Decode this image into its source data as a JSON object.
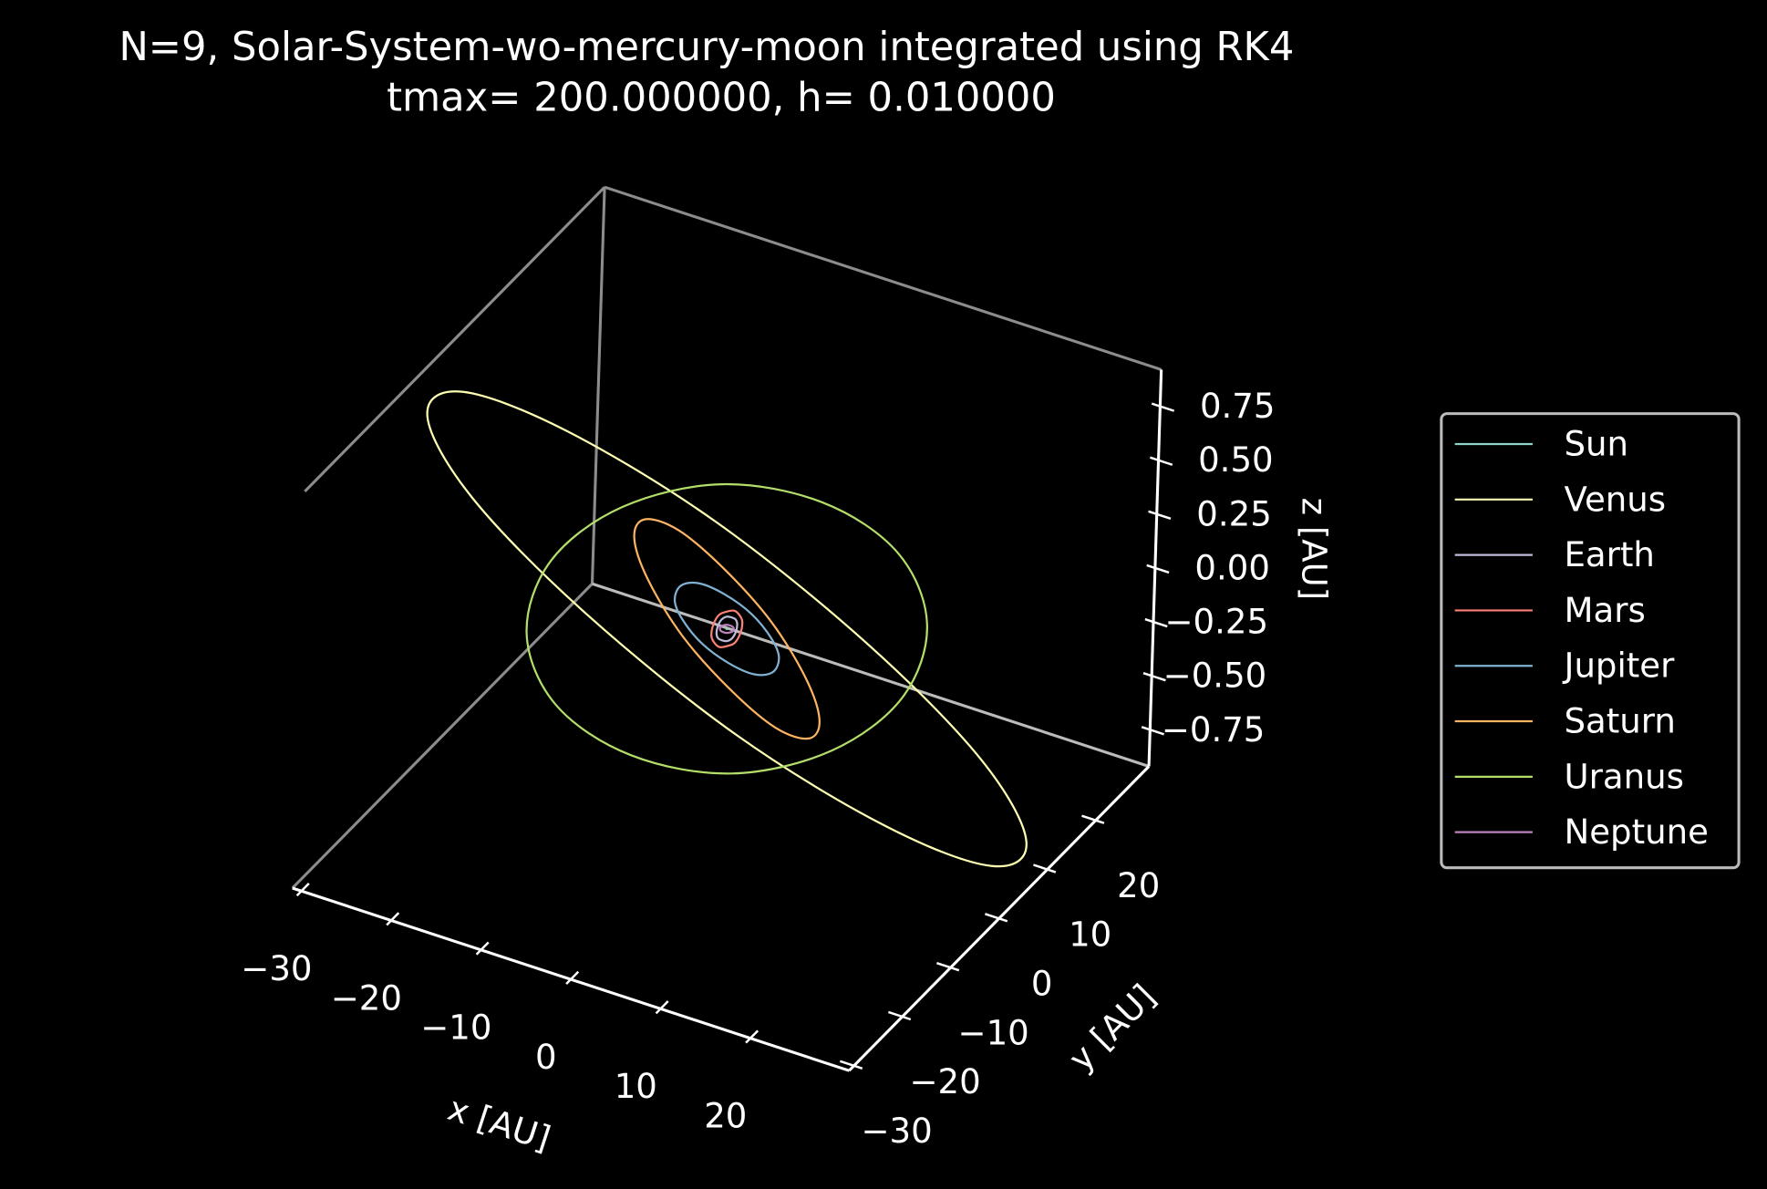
{
  "chart_data": {
    "type": "line3d",
    "title": "N=9, Solar-System-wo-mercury-moon integrated using RK4",
    "subtitle": "tmax= 200.000000, h= 0.010000",
    "x_label": "x [AU]",
    "y_label": "y [AU]",
    "z_label": "z [AU]",
    "xlim": [
      -31,
      31
    ],
    "ylim": [
      -31,
      31
    ],
    "zlim": [
      -0.92,
      0.92
    ],
    "xticks": [
      {
        "value": -30,
        "label": "−30"
      },
      {
        "value": -20,
        "label": "−20"
      },
      {
        "value": -10,
        "label": "−10"
      },
      0,
      10,
      20
    ],
    "yticks": [
      {
        "value": -30,
        "label": "−30"
      },
      {
        "value": -20,
        "label": "−20"
      },
      {
        "value": -10,
        "label": "−10"
      },
      0,
      10,
      20
    ],
    "zticks": [
      {
        "value": -0.75,
        "label": "−0.75"
      },
      {
        "value": -0.5,
        "label": "−0.50"
      },
      {
        "value": -0.25,
        "label": "−0.25"
      },
      {
        "value": 0,
        "label": "0.00"
      },
      0.25,
      {
        "value": 0.5,
        "label": "0.50"
      },
      0.75
    ],
    "grid": false,
    "legend": "center right",
    "series": [
      {
        "name": "Sun",
        "color": "#8dd3c7",
        "x": [
          0.05,
          0,
          -0.05,
          0
        ],
        "y": [
          0,
          0.05,
          0,
          -0.05
        ],
        "z": [
          0,
          0,
          0,
          0
        ]
      },
      {
        "name": "Venus",
        "color": "#feffb3",
        "x": [
          30,
          26,
          15,
          0,
          -15,
          -26,
          -30,
          -26,
          -15,
          0,
          15,
          26
        ],
        "y": [
          0,
          15,
          26,
          30,
          26,
          15,
          0,
          -15,
          -26,
          -30,
          -26,
          -15
        ],
        "z": [
          -0.69,
          -0.97,
          -0.99,
          -0.75,
          -0.3,
          0.22,
          0.69,
          0.97,
          0.99,
          0.75,
          0.3,
          -0.22
        ]
      },
      {
        "name": "Earth",
        "color": "#bfbbd9",
        "x": [
          1,
          0.87,
          0.5,
          0,
          -0.5,
          -0.87,
          -1,
          -0.87,
          -0.5,
          0,
          0.5,
          0.87
        ],
        "y": [
          0,
          0.5,
          0.87,
          1,
          0.87,
          0.5,
          0,
          -0.5,
          -0.87,
          -1,
          -0.87,
          -0.5
        ],
        "z": [
          0,
          0.02,
          0.03,
          0.03,
          0.03,
          0.02,
          0,
          -0.02,
          -0.03,
          -0.03,
          -0.03,
          -0.02
        ]
      },
      {
        "name": "Mars",
        "color": "#fa8174",
        "x": [
          1.5,
          1.3,
          0.75,
          0,
          -0.75,
          -1.3,
          -1.5,
          -1.3,
          -0.75,
          0,
          0.75,
          1.3
        ],
        "y": [
          0,
          0.75,
          1.3,
          1.5,
          1.3,
          0.75,
          0,
          -0.75,
          -1.3,
          -1.5,
          -1.3,
          -0.75
        ],
        "z": [
          0,
          0.03,
          0.04,
          0.05,
          0.04,
          0.03,
          0,
          -0.03,
          -0.04,
          -0.05,
          -0.04,
          -0.03
        ]
      },
      {
        "name": "Jupiter",
        "color": "#81b1d2",
        "x": [
          5.2,
          4.5,
          2.6,
          0,
          -2.6,
          -4.5,
          -5.2,
          -4.5,
          -2.6,
          0,
          2.6,
          4.5
        ],
        "y": [
          0,
          2.6,
          4.5,
          5.2,
          4.5,
          2.6,
          0,
          -2.6,
          -4.5,
          -5.2,
          -4.5,
          -2.6
        ],
        "z": [
          -0.13,
          -0.13,
          -0.11,
          -0.05,
          0.02,
          0.09,
          0.13,
          0.13,
          0.11,
          0.05,
          -0.02,
          -0.09
        ]
      },
      {
        "name": "Saturn",
        "color": "#fdb462",
        "x": [
          9.4,
          8.1,
          4.7,
          0,
          -4.7,
          -8.1,
          -9.4,
          -8.1,
          -4.7,
          0,
          4.7,
          8.1
        ],
        "y": [
          0,
          4.7,
          8.1,
          9.4,
          8.1,
          4.7,
          0,
          -4.7,
          -8.1,
          -9.4,
          -8.1,
          -4.7
        ],
        "z": [
          -0.38,
          -0.42,
          -0.35,
          -0.18,
          0.03,
          0.24,
          0.38,
          0.42,
          0.35,
          0.18,
          -0.03,
          -0.24
        ]
      },
      {
        "name": "Uranus",
        "color": "#b3de69",
        "x": [
          19.6,
          17,
          9.8,
          0,
          -9.8,
          -17,
          -19.6,
          -17,
          -9.8,
          0,
          9.8,
          17
        ],
        "y": [
          0,
          9.8,
          17,
          19.6,
          17,
          9.8,
          0,
          -9.8,
          -17,
          -19.6,
          -17,
          -9.8
        ],
        "z": [
          -0.05,
          0.03,
          0.1,
          0.14,
          0.15,
          0.11,
          0.05,
          -0.03,
          -0.1,
          -0.14,
          -0.15,
          -0.11
        ]
      },
      {
        "name": "Neptune",
        "color": "#bc82bd",
        "x": [
          0.7,
          0.35,
          -0.35,
          -0.7,
          -0.35,
          0.35
        ],
        "y": [
          0,
          0.61,
          0.61,
          0,
          -0.61,
          -0.61
        ],
        "z": [
          0,
          0,
          0,
          0,
          0,
          0
        ]
      }
    ]
  }
}
